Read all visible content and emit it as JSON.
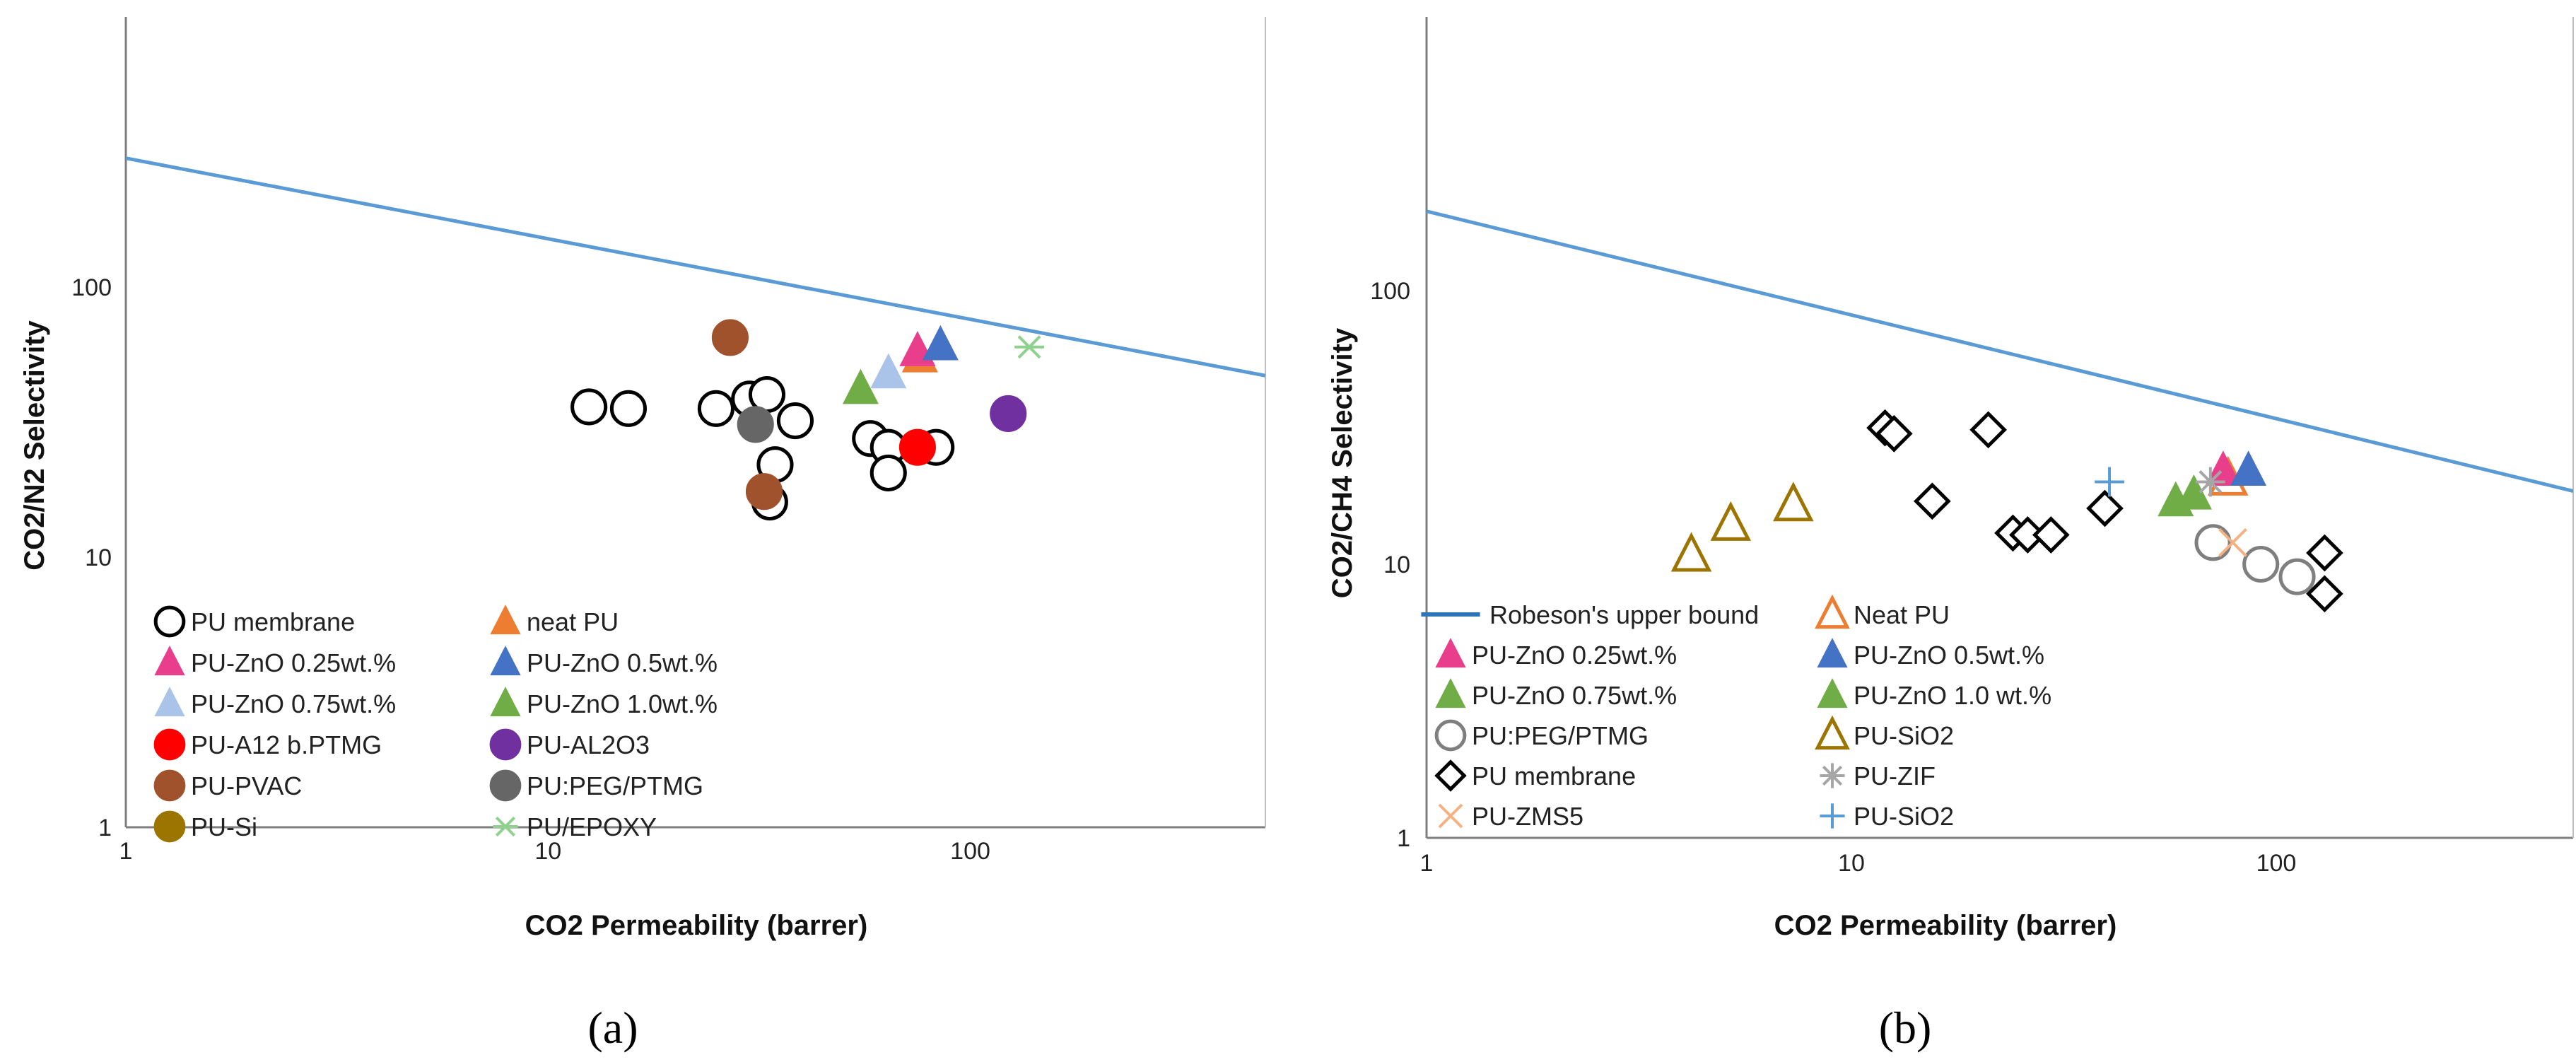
{
  "chart_data": [
    {
      "type": "scatter",
      "panel": "a",
      "caption": "(a)",
      "xlabel": "CO2 Permeability (barrer)",
      "ylabel": "CO2/N2 Selectivity",
      "xscale": "log",
      "yscale": "log",
      "xlim": [
        1,
        500
      ],
      "ylim": [
        1,
        1000
      ],
      "x_ticks": [
        {
          "value": 1,
          "label": "1"
        },
        {
          "value": 10,
          "label": "10"
        },
        {
          "value": 100,
          "label": "100"
        }
      ],
      "y_ticks": [
        {
          "value": 1,
          "label": "1"
        },
        {
          "value": 10,
          "label": "10"
        },
        {
          "value": 100,
          "label": "100"
        }
      ],
      "upper_bound": {
        "name": "Robeson's upper bound",
        "color": "#5b9bd5",
        "points": [
          [
            1,
            300
          ],
          [
            500,
            47
          ]
        ]
      },
      "legend_position": "bottom-left",
      "series": [
        {
          "name": "PU membrane",
          "marker": "circle-open",
          "color": "#000000",
          "points": [
            [
              12.5,
              36
            ],
            [
              15.5,
              35.5
            ],
            [
              25,
              35.5
            ],
            [
              30,
              38.5
            ],
            [
              33,
              40
            ],
            [
              33.5,
              16
            ],
            [
              34.5,
              22
            ],
            [
              38.5,
              32
            ],
            [
              58,
              27.5
            ],
            [
              64,
              25.5
            ],
            [
              64,
              20.5
            ],
            [
              83,
              25.5
            ]
          ]
        },
        {
          "name": "neat PU",
          "marker": "triangle",
          "color": "#ed7d31",
          "points": [
            [
              76,
              55
            ]
          ]
        },
        {
          "name": "PU-ZnO 0.25wt.%",
          "marker": "triangle",
          "color": "#e83e8c",
          "points": [
            [
              75,
              58
            ]
          ]
        },
        {
          "name": "PU-ZnO 0.5wt.%",
          "marker": "triangle",
          "color": "#4472c4",
          "points": [
            [
              85,
              61
            ]
          ]
        },
        {
          "name": "PU-ZnO 0.75wt.%",
          "marker": "triangle",
          "color": "#a9c4e8",
          "points": [
            [
              64,
              48
            ]
          ]
        },
        {
          "name": "PU-ZnO 1.0wt.%",
          "marker": "triangle",
          "color": "#70ad47",
          "points": [
            [
              55,
              42
            ]
          ]
        },
        {
          "name": "PU-A12 b.PTMG",
          "marker": "circle",
          "color": "#ff0000",
          "points": [
            [
              75,
              25.5
            ]
          ]
        },
        {
          "name": "PU-AL2O3",
          "marker": "circle",
          "color": "#7030a0",
          "points": [
            [
              123,
              34
            ]
          ]
        },
        {
          "name": "PU-PVAC",
          "marker": "circle",
          "color": "#a0522d",
          "points": [
            [
              27,
              65
            ],
            [
              32.5,
              17.5
            ]
          ]
        },
        {
          "name": "PU:PEG/PTMG",
          "marker": "circle",
          "color": "#666666",
          "points": [
            [
              31,
              31
            ]
          ]
        },
        {
          "name": "PU-Si",
          "marker": "circle",
          "color": "#9c7400",
          "points": []
        },
        {
          "name": "PU/EPOXY",
          "marker": "star",
          "color": "#8fd18f",
          "points": [
            [
              138,
              60
            ]
          ]
        }
      ]
    },
    {
      "type": "scatter",
      "panel": "b",
      "caption": "(b)",
      "xlabel": "CO2 Permeability (barrer)",
      "ylabel": "CO2/CH4 Selectivity",
      "xscale": "log",
      "yscale": "log",
      "xlim": [
        1,
        500
      ],
      "ylim": [
        1,
        1000
      ],
      "x_ticks": [
        {
          "value": 1,
          "label": "1"
        },
        {
          "value": 10,
          "label": "10"
        },
        {
          "value": 100,
          "label": "100"
        }
      ],
      "y_ticks": [
        {
          "value": 1,
          "label": "1"
        },
        {
          "value": 10,
          "label": "10"
        },
        {
          "value": 100,
          "label": "100"
        }
      ],
      "upper_bound": {
        "name": "Robeson's upper bound",
        "color": "#5b9bd5",
        "points": [
          [
            1,
            195
          ],
          [
            500,
            18.5
          ]
        ]
      },
      "legend_position": "bottom-left",
      "series": [
        {
          "name": "Robeson's upper bound",
          "marker": "line",
          "color": "#2e75b6",
          "points": []
        },
        {
          "name": "Neat PU",
          "marker": "triangle-open",
          "color": "#ed7d31",
          "points": [
            [
              77,
              20.5
            ]
          ]
        },
        {
          "name": "PU-ZnO 0.25wt.%",
          "marker": "triangle",
          "color": "#e83e8c",
          "points": [
            [
              75,
              22
            ]
          ]
        },
        {
          "name": "PU-ZnO 0.5wt.%",
          "marker": "triangle",
          "color": "#4472c4",
          "points": [
            [
              86,
              22
            ]
          ]
        },
        {
          "name": "PU-ZnO 0.75wt.%",
          "marker": "triangle",
          "color": "#70ad47",
          "points": [
            [
              58,
              17
            ]
          ]
        },
        {
          "name": "PU-ZnO 1.0 wt.%",
          "marker": "triangle",
          "color": "#70ad47",
          "points": [
            [
              64,
              18
            ]
          ]
        },
        {
          "name": "PU:PEG/PTMG",
          "marker": "circle-open",
          "color": "#7f7f7f",
          "points": [
            [
              71,
              12
            ],
            [
              92,
              10
            ],
            [
              112,
              9
            ]
          ]
        },
        {
          "name": "PU-SiO2",
          "marker": "triangle-open",
          "color": "#9c7400",
          "points": [
            [
              4.2,
              10.8
            ],
            [
              5.2,
              14
            ],
            [
              7.3,
              16.5
            ]
          ]
        },
        {
          "name": "PU membrane",
          "marker": "diamond-open",
          "color": "#000000",
          "points": [
            [
              12,
              31.5
            ],
            [
              12.6,
              30
            ],
            [
              21,
              31
            ],
            [
              15.5,
              17
            ],
            [
              24,
              13
            ],
            [
              26,
              12.8
            ],
            [
              29.5,
              12.8
            ],
            [
              39.5,
              16
            ],
            [
              130,
              11
            ],
            [
              130,
              7.8
            ]
          ]
        },
        {
          "name": "PU-ZIF",
          "marker": "asterisk",
          "color": "#a6a6a6",
          "points": [
            [
              70,
              20
            ]
          ]
        },
        {
          "name": "PU-ZMS5",
          "marker": "x",
          "color": "#f4b183",
          "points": [
            [
              79,
              12
            ]
          ]
        },
        {
          "name": "PU-SiO2",
          "marker": "plus",
          "color": "#5b9bd5",
          "points": [
            [
              40.5,
              20
            ]
          ]
        }
      ]
    }
  ]
}
